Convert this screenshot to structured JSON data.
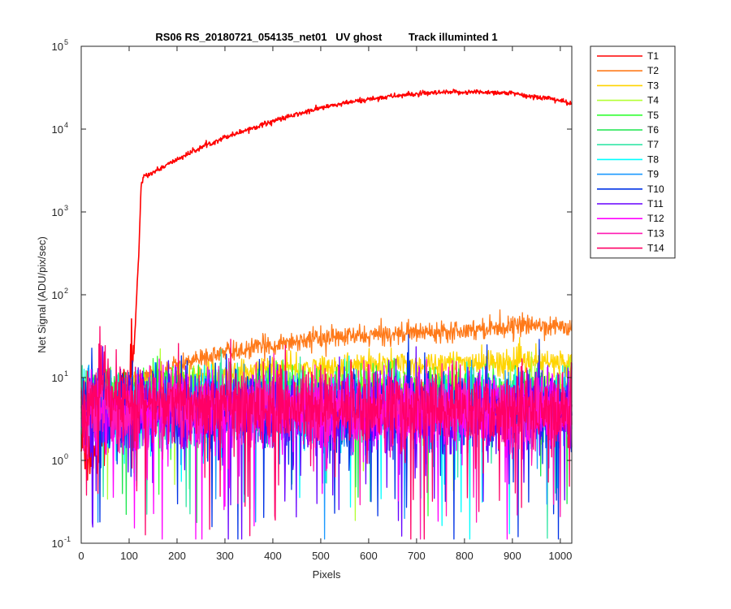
{
  "chart_data": {
    "type": "line",
    "title": "RS06 RS_20180721_054135_net01   UV ghost         Track illuminted 1",
    "xlabel": "Pixels",
    "ylabel": "Net Signal (ADU/pix/sec)",
    "xlim": [
      0,
      1024
    ],
    "ylim": [
      0.1,
      100000
    ],
    "yscale": "log",
    "x_ticks": [
      "0",
      "100",
      "200",
      "300",
      "400",
      "500",
      "600",
      "700",
      "800",
      "900",
      "1000"
    ],
    "y_ticks": [
      {
        "value": 0.1,
        "base": "10",
        "exp": "-1"
      },
      {
        "value": 1,
        "base": "10",
        "exp": "0"
      },
      {
        "value": 10,
        "base": "10",
        "exp": "1"
      },
      {
        "value": 100,
        "base": "10",
        "exp": "2"
      },
      {
        "value": 1000,
        "base": "10",
        "exp": "3"
      },
      {
        "value": 10000,
        "base": "10",
        "exp": "4"
      },
      {
        "value": 100000,
        "base": "10",
        "exp": "5"
      }
    ],
    "grid": false,
    "legend_position": "outside-right",
    "series": [
      {
        "name": "T1",
        "color": "#ff0000",
        "x": [
          0,
          20,
          50,
          80,
          100,
          110,
          120,
          125,
          130,
          150,
          200,
          250,
          300,
          350,
          400,
          450,
          500,
          550,
          600,
          650,
          700,
          750,
          800,
          850,
          900,
          930,
          950,
          980,
          1000,
          1024
        ],
        "y": [
          1.5,
          1.2,
          2.5,
          6,
          9,
          20,
          300,
          2000,
          2700,
          3000,
          4300,
          6000,
          8000,
          10000,
          12500,
          15000,
          18000,
          20500,
          23000,
          25000,
          26500,
          27500,
          28000,
          28000,
          27000,
          25000,
          24500,
          23500,
          22000,
          20000
        ]
      },
      {
        "name": "T2",
        "color": "#ff7a1a",
        "x": [
          100,
          150,
          200,
          250,
          300,
          350,
          400,
          450,
          500,
          550,
          600,
          650,
          700,
          750,
          800,
          850,
          900,
          950,
          1000,
          1024
        ],
        "y": [
          8.5,
          11,
          14,
          17,
          20,
          22,
          25,
          28,
          30,
          31,
          32,
          34,
          35,
          37,
          38,
          40,
          42,
          43,
          41,
          39
        ]
      },
      {
        "name": "T3",
        "color": "#ffd400",
        "x": [
          100,
          200,
          300,
          400,
          500,
          600,
          700,
          800,
          900,
          1000,
          1024
        ],
        "y": [
          7.5,
          9.5,
          11,
          12.5,
          13,
          14,
          14.5,
          15,
          15,
          15,
          14.5
        ]
      },
      {
        "name": "T4",
        "color": "#b3ff33",
        "x": [
          0,
          1024
        ],
        "y": [
          7,
          7
        ]
      },
      {
        "name": "T5",
        "color": "#33ff33",
        "x": [
          0,
          1024
        ],
        "y": [
          6,
          6
        ]
      },
      {
        "name": "T6",
        "color": "#1ae64d",
        "x": [
          0,
          1024
        ],
        "y": [
          5,
          5
        ]
      },
      {
        "name": "T7",
        "color": "#33e6a6",
        "x": [
          0,
          1024
        ],
        "y": [
          4.5,
          4.5
        ]
      },
      {
        "name": "T8",
        "color": "#00ffff",
        "x": [
          0,
          1024
        ],
        "y": [
          4.2,
          4.2
        ]
      },
      {
        "name": "T9",
        "color": "#1a99ff",
        "x": [
          0,
          1024
        ],
        "y": [
          4,
          4
        ]
      },
      {
        "name": "T10",
        "color": "#0033e6",
        "x": [
          0,
          1024
        ],
        "y": [
          4,
          4
        ]
      },
      {
        "name": "T11",
        "color": "#6600ff",
        "x": [
          0,
          1024
        ],
        "y": [
          3.8,
          3.8
        ]
      },
      {
        "name": "T12",
        "color": "#ff00ff",
        "x": [
          0,
          1024
        ],
        "y": [
          4,
          4
        ]
      },
      {
        "name": "T13",
        "color": "#ff1ab3",
        "x": [
          0,
          1024
        ],
        "y": [
          4,
          4
        ]
      },
      {
        "name": "T14",
        "color": "#ff0066",
        "x": [
          0,
          40,
          50,
          60,
          1024
        ],
        "y": [
          4,
          6,
          12,
          5,
          4
        ]
      }
    ]
  }
}
